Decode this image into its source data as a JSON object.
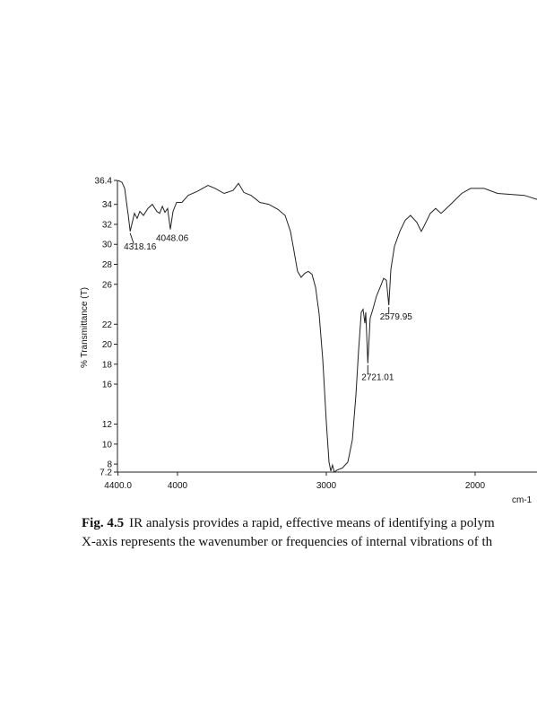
{
  "chart_data": {
    "type": "line",
    "ylabel": "% Transmittance (T)",
    "xlabel": "cm-1",
    "xlim": [
      4400,
      1584
    ],
    "ylim": [
      7.2,
      36.4
    ],
    "xticks": [
      {
        "value": 4400,
        "label": "4400.0"
      },
      4000,
      3000,
      2000
    ],
    "yticks": [
      36.4,
      34,
      32,
      30,
      28,
      26,
      22,
      20,
      18,
      16,
      12,
      10,
      8,
      7.2
    ],
    "color": "#222222",
    "x": [
      4400,
      4373,
      4355,
      4343,
      4331,
      4318,
      4307,
      4289,
      4271,
      4253,
      4229,
      4199,
      4169,
      4139,
      4120,
      4102,
      4084,
      4066,
      4048,
      4030,
      4006,
      3970,
      3928,
      3867,
      3795,
      3747,
      3687,
      3626,
      3590,
      3554,
      3506,
      3446,
      3386,
      3325,
      3277,
      3241,
      3217,
      3193,
      3169,
      3145,
      3121,
      3096,
      3072,
      3048,
      3024,
      3000,
      2982,
      2970,
      2958,
      2946,
      2928,
      2892,
      2855,
      2825,
      2801,
      2783,
      2765,
      2753,
      2741,
      2735,
      2721,
      2705,
      2687,
      2663,
      2633,
      2615,
      2596,
      2580,
      2566,
      2542,
      2506,
      2470,
      2434,
      2392,
      2362,
      2344,
      2301,
      2265,
      2229,
      2193,
      2151,
      2090,
      2030,
      1940,
      1849,
      1759,
      1669,
      1584
    ],
    "values": [
      36.4,
      36.2,
      35.6,
      34.2,
      32.9,
      31.3,
      32.0,
      33.1,
      32.6,
      33.3,
      32.9,
      33.6,
      34.0,
      33.3,
      33.1,
      33.8,
      33.2,
      33.6,
      31.5,
      33.3,
      34.2,
      34.2,
      34.9,
      35.3,
      35.9,
      35.6,
      35.1,
      35.4,
      36.1,
      35.2,
      34.9,
      34.2,
      34.0,
      33.5,
      32.9,
      31.3,
      29.3,
      27.3,
      26.7,
      27.1,
      27.3,
      27.0,
      25.7,
      23.0,
      18.5,
      12.2,
      8.2,
      7.3,
      7.9,
      7.2,
      7.4,
      7.6,
      8.2,
      10.4,
      14.9,
      19.4,
      23.2,
      23.5,
      22.1,
      23.2,
      18.1,
      22.6,
      23.5,
      24.8,
      25.9,
      26.6,
      26.4,
      23.9,
      27.5,
      29.8,
      31.3,
      32.4,
      32.9,
      32.2,
      31.3,
      31.8,
      33.1,
      33.6,
      33.1,
      33.6,
      34.2,
      35.1,
      35.6,
      35.6,
      35.1,
      35.0,
      34.9,
      34.5
    ],
    "annotations": [
      {
        "x": 4318.16,
        "y": 31.3
      },
      {
        "x": 4048.06,
        "y": 31.5
      },
      {
        "x": 2579.95,
        "y": 23.9
      },
      {
        "x": 2721.01,
        "y": 18.1
      }
    ]
  },
  "caption": {
    "label": "Fig. 4.5",
    "lines": [
      "IR analysis provides a rapid, effective means of identifying a polym",
      "X-axis represents the wavenumber or frequencies of internal vibrations of th"
    ]
  }
}
